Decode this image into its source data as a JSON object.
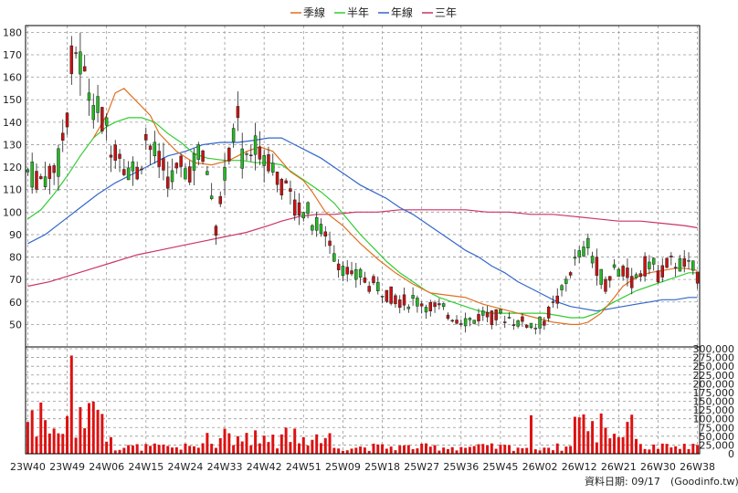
{
  "chart_data": {
    "type": "candlestick-with-volume",
    "colors": {
      "up": "#22bb22",
      "down": "#cc1111",
      "volume": "#dd1111",
      "ma_quarter": "#e07020",
      "ma_half": "#33cc33",
      "ma_year": "#3366cc",
      "ma_3year": "#cc3366",
      "grid": "#999999",
      "frame": "#000000"
    },
    "legend": [
      {
        "label": "季線",
        "color": "#e07020"
      },
      {
        "label": "半年",
        "color": "#33cc33"
      },
      {
        "label": "年線",
        "color": "#3366cc"
      },
      {
        "label": "三年",
        "color": "#cc3366"
      }
    ],
    "price_axis": {
      "min": 40,
      "max": 183,
      "ticks": [
        50,
        60,
        70,
        80,
        90,
        100,
        110,
        120,
        130,
        140,
        150,
        160,
        170,
        180
      ]
    },
    "volume_axis": {
      "min": 0,
      "max": 300000,
      "ticks": [
        0,
        25000,
        50000,
        75000,
        100000,
        125000,
        150000,
        175000,
        200000,
        225000,
        250000,
        275000,
        300000
      ],
      "tick_labels": [
        "0",
        "25,000",
        "50,000",
        "75,000",
        "100,000",
        "125,000",
        "150,000",
        "175,000",
        "200,000",
        "225,000",
        "250,000",
        "275,000",
        "300,000"
      ]
    },
    "x_axis": {
      "bars": 154,
      "tick_labels": [
        "23W40",
        "23W49",
        "24W06",
        "24W15",
        "24W24",
        "24W33",
        "24W42",
        "24W51",
        "25W09",
        "25W18",
        "25W27",
        "25W36",
        "25W45",
        "26W02",
        "26W12",
        "26W21",
        "26W30",
        "26W38"
      ],
      "tick_positions": [
        0,
        9,
        18,
        27,
        36,
        45,
        54,
        63,
        72,
        81,
        90,
        99,
        108,
        117,
        126,
        135,
        144,
        153
      ]
    },
    "ma_quarter": [
      [
        15,
        133
      ],
      [
        18,
        143
      ],
      [
        20,
        153
      ],
      [
        22,
        155
      ],
      [
        25,
        149
      ],
      [
        28,
        143
      ],
      [
        30,
        135
      ],
      [
        34,
        127
      ],
      [
        38,
        122
      ],
      [
        42,
        121
      ],
      [
        46,
        123
      ],
      [
        50,
        127
      ],
      [
        53,
        129
      ],
      [
        56,
        127
      ],
      [
        60,
        118
      ],
      [
        63,
        114
      ],
      [
        65,
        109
      ],
      [
        68,
        100
      ],
      [
        72,
        94
      ],
      [
        76,
        86
      ],
      [
        80,
        79
      ],
      [
        84,
        73
      ],
      [
        88,
        68
      ],
      [
        92,
        64
      ],
      [
        96,
        63
      ],
      [
        100,
        62
      ],
      [
        104,
        59
      ],
      [
        108,
        57
      ],
      [
        112,
        55
      ],
      [
        116,
        53
      ],
      [
        120,
        51
      ],
      [
        124,
        50
      ],
      [
        126,
        50
      ],
      [
        128,
        51
      ],
      [
        131,
        55
      ],
      [
        134,
        62
      ],
      [
        136,
        67
      ],
      [
        139,
        71
      ],
      [
        142,
        73
      ],
      [
        145,
        74
      ],
      [
        148,
        75
      ],
      [
        150,
        75
      ],
      [
        153,
        74
      ]
    ],
    "ma_half": [
      [
        0,
        97
      ],
      [
        3,
        101
      ],
      [
        6,
        108
      ],
      [
        9,
        116
      ],
      [
        12,
        125
      ],
      [
        15,
        133
      ],
      [
        18,
        138
      ],
      [
        20,
        140
      ],
      [
        23,
        142
      ],
      [
        26,
        142
      ],
      [
        29,
        140
      ],
      [
        32,
        135
      ],
      [
        35,
        131
      ],
      [
        38,
        126
      ],
      [
        41,
        124
      ],
      [
        45,
        123
      ],
      [
        49,
        123
      ],
      [
        52,
        122
      ],
      [
        55,
        122
      ],
      [
        58,
        121
      ],
      [
        61,
        117
      ],
      [
        64,
        113
      ],
      [
        67,
        109
      ],
      [
        70,
        104
      ],
      [
        73,
        97
      ],
      [
        76,
        90
      ],
      [
        79,
        84
      ],
      [
        82,
        78
      ],
      [
        85,
        73
      ],
      [
        88,
        69
      ],
      [
        91,
        65
      ],
      [
        94,
        62
      ],
      [
        97,
        60
      ],
      [
        100,
        58
      ],
      [
        103,
        56
      ],
      [
        106,
        55
      ],
      [
        109,
        55
      ],
      [
        112,
        55
      ],
      [
        115,
        55
      ],
      [
        118,
        55
      ],
      [
        121,
        54
      ],
      [
        124,
        53
      ],
      [
        127,
        53
      ],
      [
        130,
        55
      ],
      [
        133,
        59
      ],
      [
        136,
        62
      ],
      [
        139,
        65
      ],
      [
        142,
        67
      ],
      [
        145,
        69
      ],
      [
        148,
        71
      ],
      [
        151,
        73
      ],
      [
        153,
        73
      ]
    ],
    "ma_year": [
      [
        0,
        86
      ],
      [
        4,
        90
      ],
      [
        8,
        96
      ],
      [
        12,
        102
      ],
      [
        16,
        108
      ],
      [
        20,
        113
      ],
      [
        24,
        117
      ],
      [
        28,
        121
      ],
      [
        32,
        125
      ],
      [
        36,
        127
      ],
      [
        40,
        130
      ],
      [
        44,
        131
      ],
      [
        48,
        131
      ],
      [
        52,
        132
      ],
      [
        55,
        133
      ],
      [
        58,
        133
      ],
      [
        61,
        130
      ],
      [
        64,
        127
      ],
      [
        67,
        124
      ],
      [
        70,
        120
      ],
      [
        73,
        116
      ],
      [
        76,
        112
      ],
      [
        79,
        109
      ],
      [
        82,
        106
      ],
      [
        85,
        102
      ],
      [
        88,
        99
      ],
      [
        91,
        95
      ],
      [
        94,
        91
      ],
      [
        97,
        87
      ],
      [
        100,
        83
      ],
      [
        103,
        80
      ],
      [
        106,
        76
      ],
      [
        109,
        73
      ],
      [
        112,
        69
      ],
      [
        115,
        66
      ],
      [
        118,
        63
      ],
      [
        121,
        60
      ],
      [
        124,
        58
      ],
      [
        127,
        57
      ],
      [
        130,
        56
      ],
      [
        133,
        57
      ],
      [
        136,
        58
      ],
      [
        139,
        59
      ],
      [
        142,
        60
      ],
      [
        145,
        61
      ],
      [
        148,
        61
      ],
      [
        151,
        62
      ],
      [
        153,
        62
      ]
    ],
    "ma_3year": [
      [
        0,
        67
      ],
      [
        5,
        69
      ],
      [
        10,
        72
      ],
      [
        15,
        75
      ],
      [
        20,
        78
      ],
      [
        25,
        81
      ],
      [
        30,
        83
      ],
      [
        35,
        85
      ],
      [
        40,
        87
      ],
      [
        45,
        89
      ],
      [
        50,
        91
      ],
      [
        55,
        94
      ],
      [
        58,
        96
      ],
      [
        62,
        98
      ],
      [
        66,
        99
      ],
      [
        70,
        99
      ],
      [
        75,
        100
      ],
      [
        80,
        100
      ],
      [
        85,
        101
      ],
      [
        90,
        101
      ],
      [
        95,
        101
      ],
      [
        100,
        101
      ],
      [
        105,
        100
      ],
      [
        110,
        100
      ],
      [
        115,
        99
      ],
      [
        120,
        99
      ],
      [
        125,
        98
      ],
      [
        130,
        97
      ],
      [
        135,
        96
      ],
      [
        140,
        96
      ],
      [
        145,
        95
      ],
      [
        150,
        94
      ],
      [
        153,
        93
      ]
    ]
  },
  "footer": {
    "data_date": "資料日期: 09/17",
    "source": "(Goodinfo.tw)"
  }
}
